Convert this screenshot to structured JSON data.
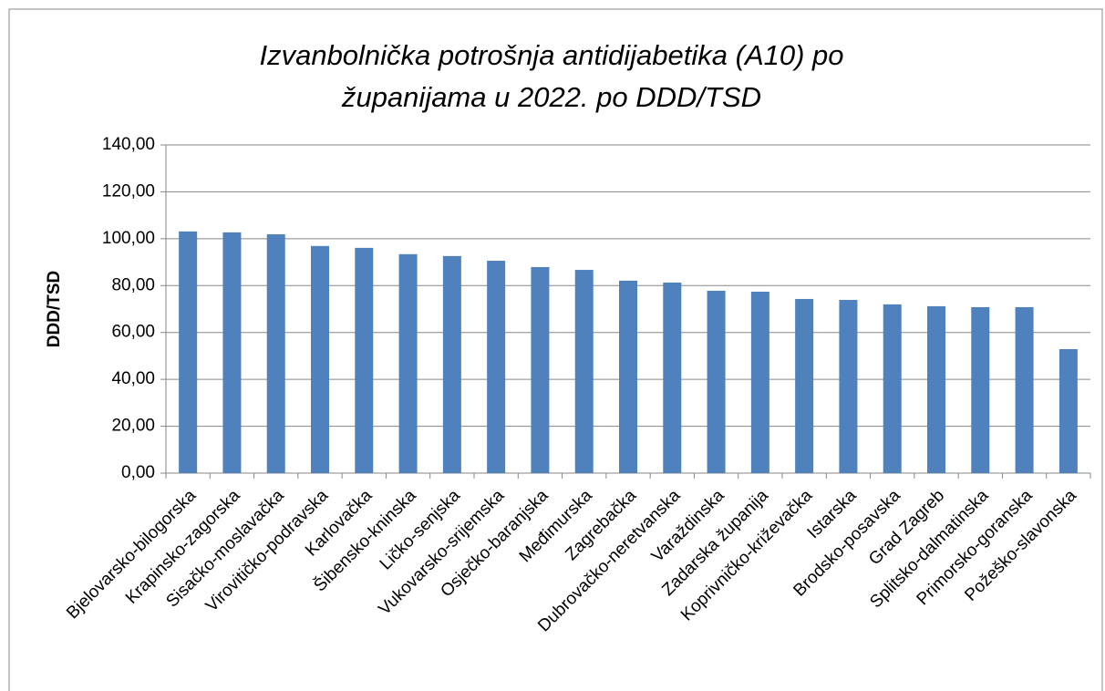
{
  "chart_data": {
    "type": "bar",
    "title": "Izvanbolnička potrošnja antidijabetika (A10) po županijama u 2022. po DDD/TSD",
    "ylabel": "DDD/TSD",
    "categories": [
      "Bjelovarsko-bilogorska",
      "Krapinsko-zagorska",
      "Sisačko-moslavačka",
      "Virovitičko-podravska",
      "Karlovačka",
      "Šibensko-kninska",
      "Ličko-senjska",
      "Vukovarsko-srijemska",
      "Osječko-baranjska",
      "Međimurska",
      "Zagrebačka",
      "Dubrovačko-neretvanska",
      "Varaždinska",
      "Zadarska županija",
      "Koprivničko-križevačka",
      "Istarska",
      "Brodsko-posavska",
      "Grad Zagreb",
      "Splitsko-dalmatinska",
      "Primorsko-goranska",
      "Požeško-slavonska"
    ],
    "values": [
      103.1,
      102.7,
      101.9,
      96.9,
      96.1,
      93.4,
      92.6,
      90.6,
      87.9,
      86.7,
      82.1,
      81.3,
      77.8,
      77.4,
      74.3,
      73.9,
      72.0,
      71.2,
      70.8,
      70.8,
      52.9
    ],
    "color": "#4f81bd",
    "ylim": [
      0,
      140
    ],
    "yticks": [
      {
        "value": 0,
        "label": "0,00"
      },
      {
        "value": 20,
        "label": "20,00"
      },
      {
        "value": 40,
        "label": "40,00"
      },
      {
        "value": 60,
        "label": "60,00"
      },
      {
        "value": 80,
        "label": "80,00"
      },
      {
        "value": 100,
        "label": "100,00"
      },
      {
        "value": 120,
        "label": "120,00"
      },
      {
        "value": 140,
        "label": "140,00"
      }
    ],
    "grid": true
  }
}
